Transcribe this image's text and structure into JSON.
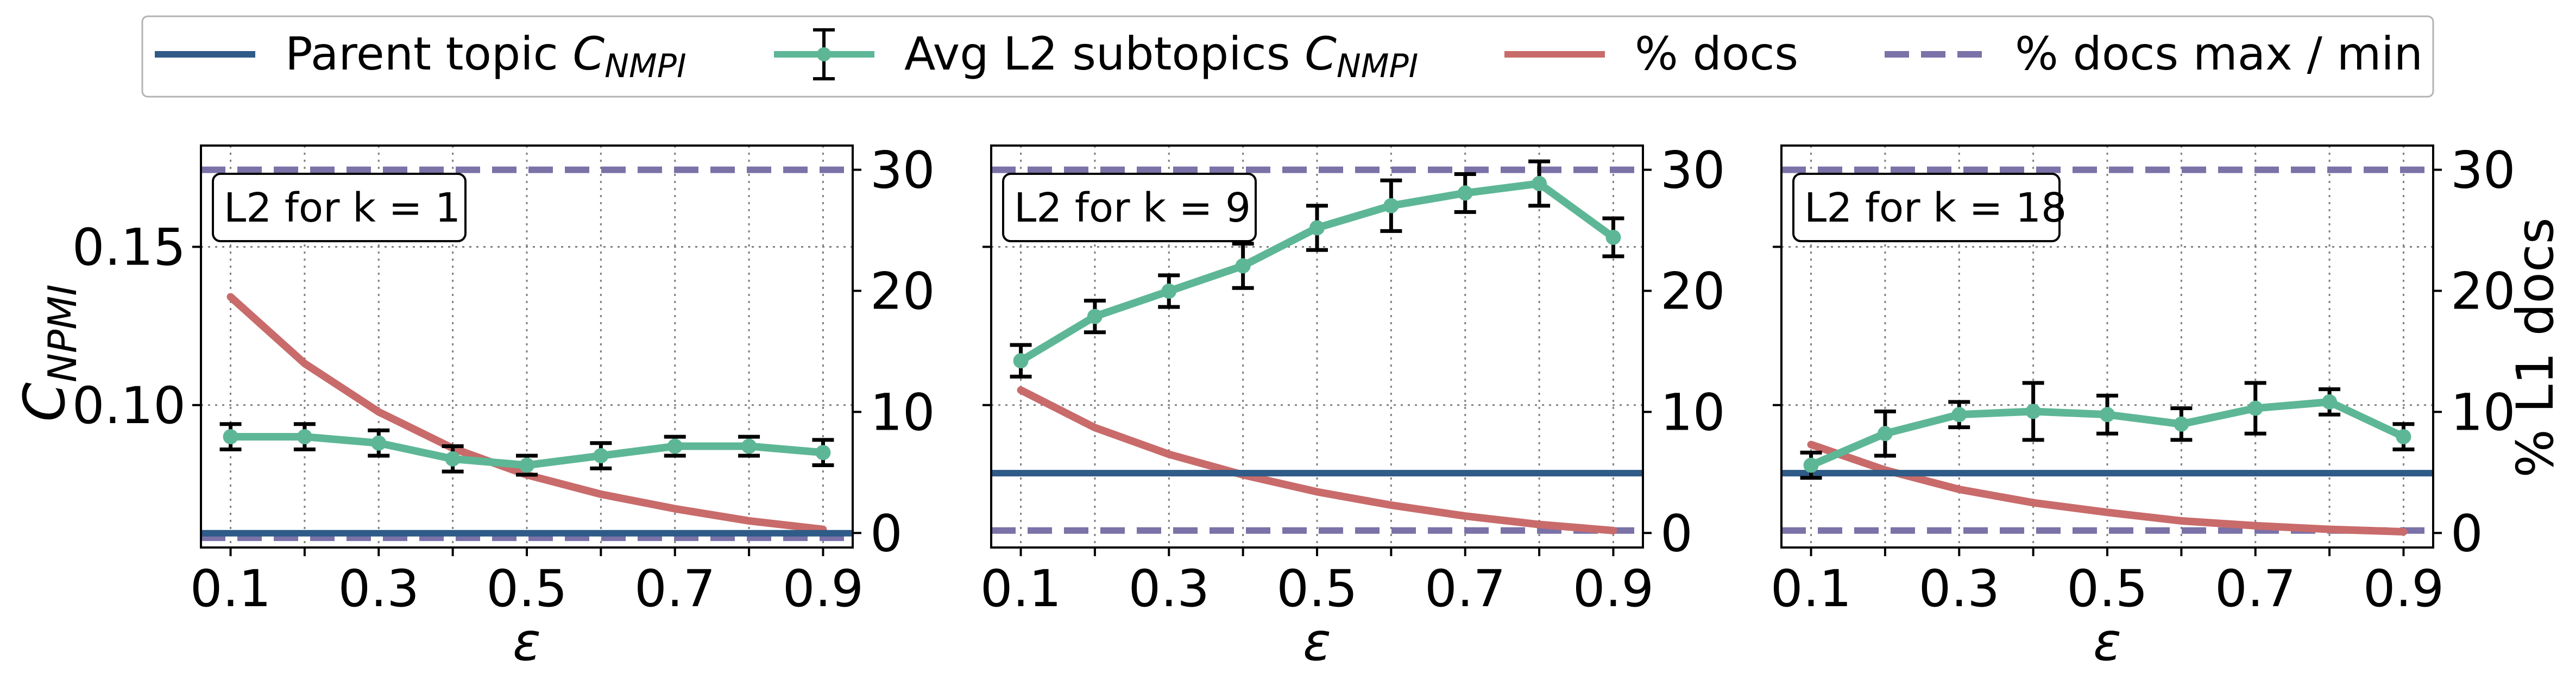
{
  "legend": {
    "placement": "top-center",
    "entries": [
      {
        "label": "Parent topic ",
        "sub": "NMPI",
        "color": "#2e5b87",
        "style": "solid"
      },
      {
        "label": "Avg L2 subtopics ",
        "sub": "NMPI",
        "color": "#5db796",
        "style": "errorbar"
      },
      {
        "label": "% docs",
        "sub": "",
        "color": "#c96b6b",
        "style": "solid"
      },
      {
        "label": "% docs max / min",
        "sub": "",
        "color": "#7b72a8",
        "style": "dashed"
      }
    ]
  },
  "axes": {
    "xlabel": "ε",
    "ylabel_left": "C",
    "ylabel_left_sub": "NPMI",
    "ylabel_right": "% L1 docs",
    "left_ylim": [
      0.055,
      0.182
    ],
    "left_ticks": [
      0.1,
      0.15
    ],
    "left_tick_labels": [
      "0.10",
      "0.15"
    ],
    "right_ylim": [
      -1.2,
      32.0
    ],
    "right_ticks": [
      0,
      10,
      20,
      30
    ],
    "right_tick_labels": [
      "0",
      "10",
      "20",
      "30"
    ],
    "xlim": [
      0.06,
      0.94
    ],
    "xticks": [
      0.1,
      0.2,
      0.3,
      0.4,
      0.5,
      0.6,
      0.7,
      0.8,
      0.9
    ],
    "xtick_labels": [
      "0.1",
      "",
      "0.3",
      "",
      "0.5",
      "",
      "0.7",
      "",
      "0.9"
    ],
    "grid": true
  },
  "chart_data": [
    {
      "type": "line",
      "panel_label": "L2 for ",
      "panel_k": "k = 1",
      "x": [
        0.1,
        0.2,
        0.3,
        0.4,
        0.5,
        0.6,
        0.7,
        0.8,
        0.9
      ],
      "parent_cnpmi": 0.0595,
      "avg_l2_cnpmi": [
        0.09,
        0.09,
        0.088,
        0.083,
        0.081,
        0.084,
        0.087,
        0.087,
        0.085
      ],
      "avg_l2_err": [
        0.004,
        0.004,
        0.004,
        0.004,
        0.003,
        0.004,
        0.003,
        0.003,
        0.004
      ],
      "pct_docs": [
        19.5,
        14.0,
        10.0,
        7.0,
        4.8,
        3.2,
        2.0,
        1.0,
        0.3
      ],
      "pct_docs_max": 30,
      "pct_docs_min": -0.4
    },
    {
      "type": "line",
      "panel_label": "L2 for ",
      "panel_k": "k = 9",
      "x": [
        0.1,
        0.2,
        0.3,
        0.4,
        0.5,
        0.6,
        0.7,
        0.8,
        0.9
      ],
      "parent_cnpmi": 0.0785,
      "avg_l2_cnpmi": [
        0.114,
        0.128,
        0.136,
        0.144,
        0.156,
        0.163,
        0.167,
        0.17,
        0.153
      ],
      "avg_l2_err": [
        0.005,
        0.005,
        0.005,
        0.007,
        0.007,
        0.008,
        0.006,
        0.007,
        0.006
      ],
      "pct_docs": [
        11.8,
        8.7,
        6.5,
        4.8,
        3.4,
        2.3,
        1.4,
        0.7,
        0.2
      ],
      "pct_docs_max": 30,
      "pct_docs_min": 0.2
    },
    {
      "type": "line",
      "panel_label": "L2 for ",
      "panel_k": "k = 18",
      "x": [
        0.1,
        0.2,
        0.3,
        0.4,
        0.5,
        0.6,
        0.7,
        0.8,
        0.9
      ],
      "parent_cnpmi": 0.0785,
      "avg_l2_cnpmi": [
        0.081,
        0.091,
        0.097,
        0.098,
        0.097,
        0.094,
        0.099,
        0.101,
        0.09
      ],
      "avg_l2_err": [
        0.004,
        0.007,
        0.004,
        0.009,
        0.006,
        0.005,
        0.008,
        0.004,
        0.004
      ],
      "pct_docs": [
        7.3,
        5.2,
        3.6,
        2.5,
        1.7,
        1.0,
        0.6,
        0.3,
        0.1
      ],
      "pct_docs_max": 30,
      "pct_docs_min": 0.2
    }
  ]
}
